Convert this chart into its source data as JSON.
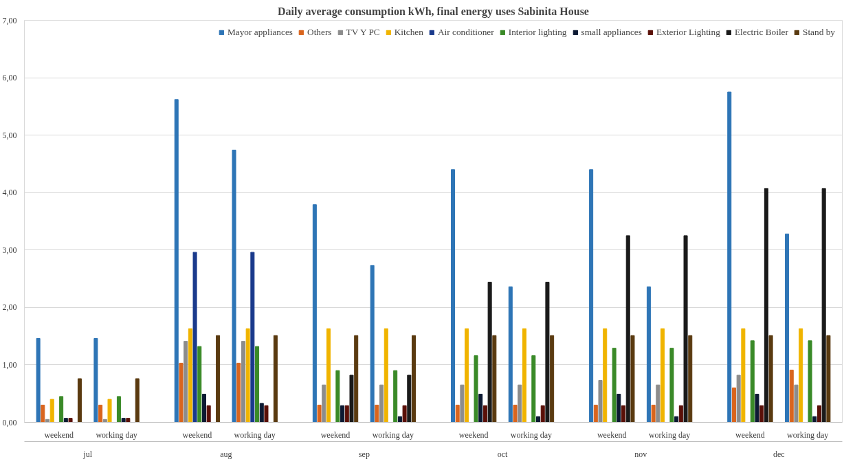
{
  "chart_data": {
    "type": "bar",
    "title": "Daily average consumption kWh, final energy uses Sabinita House",
    "categories": [
      "weekend",
      "working day",
      "weekend",
      "working day",
      "weekend",
      "working day",
      "weekend",
      "working day",
      "weekend",
      "working day",
      "weekend",
      "working day"
    ],
    "annotations": [
      "jul",
      "aug",
      "sep",
      "oct",
      "nov",
      "dec"
    ],
    "series": [
      {
        "name": "Mayor appliances",
        "color": "#2e75b6",
        "values": [
          1.46,
          1.46,
          5.62,
          4.74,
          3.79,
          2.73,
          4.4,
          2.36,
          4.4,
          2.36,
          5.75,
          3.28
        ]
      },
      {
        "name": "Others",
        "color": "#d9651e",
        "values": [
          0.3,
          0.3,
          1.03,
          1.03,
          0.3,
          0.3,
          0.3,
          0.3,
          0.3,
          0.3,
          0.6,
          0.91
        ]
      },
      {
        "name": "TV Y PC",
        "color": "#8c8c8c",
        "values": [
          0.05,
          0.05,
          1.41,
          1.41,
          0.65,
          0.65,
          0.65,
          0.65,
          0.73,
          0.65,
          0.82,
          0.65
        ]
      },
      {
        "name": "Kitchen",
        "color": "#f0b400",
        "values": [
          0.4,
          0.4,
          1.63,
          1.63,
          1.63,
          1.63,
          1.63,
          1.63,
          1.63,
          1.63,
          1.63,
          1.63
        ]
      },
      {
        "name": "Air conditioner",
        "color": "#1a3a8c",
        "values": [
          0,
          0,
          2.96,
          2.96,
          0,
          0,
          0,
          0,
          0,
          0,
          0,
          0
        ]
      },
      {
        "name": "Interior lighting",
        "color": "#3a8a28",
        "values": [
          0.45,
          0.45,
          1.32,
          1.32,
          0.9,
          0.9,
          1.16,
          1.16,
          1.29,
          1.29,
          1.42,
          1.42
        ]
      },
      {
        "name": "small appliances",
        "color": "#0d1a33",
        "values": [
          0.07,
          0.07,
          0.49,
          0.33,
          0.29,
          0.1,
          0.49,
          0.1,
          0.49,
          0.1,
          0.49,
          0.1
        ]
      },
      {
        "name": "Exterior Lighting",
        "color": "#5a1008",
        "values": [
          0.07,
          0.07,
          0.29,
          0.29,
          0.29,
          0.29,
          0.29,
          0.29,
          0.29,
          0.29,
          0.29,
          0.29
        ]
      },
      {
        "name": "Electric Boiler",
        "color": "#1a1a1a",
        "values": [
          0,
          0,
          0,
          0,
          0.82,
          0.82,
          2.44,
          2.44,
          3.25,
          3.25,
          4.07,
          4.07
        ]
      },
      {
        "name": "Stand by",
        "color": "#5a3a10",
        "values": [
          0.76,
          0.76,
          1.51,
          1.51,
          1.51,
          1.51,
          1.51,
          1.51,
          1.51,
          1.51,
          1.51,
          1.51
        ]
      }
    ],
    "ylim": [
      0,
      7
    ],
    "yticks": [
      {
        "value": 0,
        "label": "0,00"
      },
      {
        "value": 1,
        "label": "1,00"
      },
      {
        "value": 2,
        "label": "2,00"
      },
      {
        "value": 3,
        "label": "3,00"
      },
      {
        "value": 4,
        "label": "4,00"
      },
      {
        "value": 5,
        "label": "5,00"
      },
      {
        "value": 6,
        "label": "6,00"
      },
      {
        "value": 7,
        "label": "7,00"
      }
    ],
    "grid": "y",
    "legend": "top right"
  }
}
